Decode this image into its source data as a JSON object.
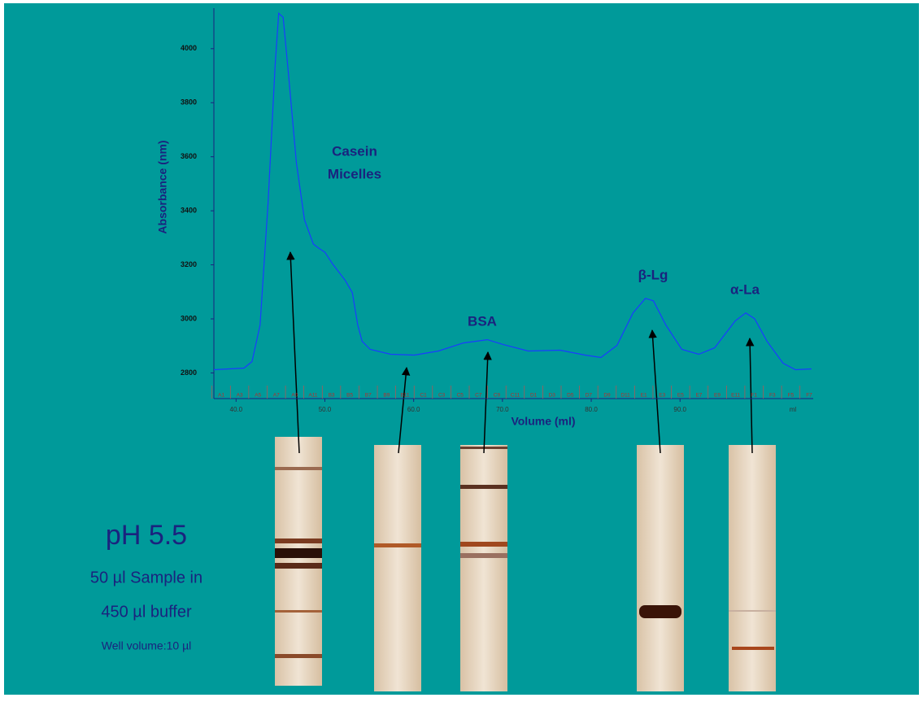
{
  "chart_data": {
    "type": "line",
    "y_label": "Absorbance (nm)",
    "x_label": "Volume (ml)",
    "x_unit": "ml",
    "xlim": [
      37.5,
      105
    ],
    "xticks": [
      {
        "value": 40,
        "label": "40.0"
      },
      {
        "value": 50,
        "label": "50.0"
      },
      {
        "value": 60,
        "label": "60.0"
      },
      {
        "value": 70,
        "label": "70.0"
      },
      {
        "value": 80,
        "label": "80.0"
      },
      {
        "value": 90,
        "label": "90.0"
      }
    ],
    "ylim": [
      2705,
      4150
    ],
    "yticks": [
      2800,
      3000,
      3200,
      3400,
      3600,
      3800,
      4000
    ],
    "fractions": [
      "A1",
      "A3",
      "A5",
      "A7",
      "A9",
      "A11",
      "B3",
      "B5",
      "B7",
      "B9",
      "B11",
      "C1",
      "C3",
      "C5",
      "C7",
      "C9",
      "C11",
      "D1",
      "D3",
      "D5",
      "D7",
      "D9",
      "D11",
      "E1",
      "E3",
      "E5",
      "E7",
      "E9",
      "E11",
      "F1",
      "F3",
      "F5",
      "F7"
    ],
    "series": [
      {
        "color": "#1a3cff",
        "x": [
          37.5,
          40.9,
          41.8,
          42.7,
          43.6,
          44.4,
          44.8,
          45.3,
          45.9,
          46.8,
          47.7,
          48.7,
          49.3,
          50.0,
          50.9,
          52.3,
          53.1,
          53.7,
          54.2,
          55.1,
          57.4,
          60.1,
          62.8,
          65.6,
          68.3,
          70.1,
          72.9,
          76.5,
          79.3,
          81.1,
          82.9,
          84.7,
          86.1,
          87.0,
          88.4,
          90.2,
          92.1,
          93.9,
          96.2,
          97.4,
          98.4,
          99.8,
          101.6,
          103.0,
          104.8
        ],
        "values": [
          2812,
          2818,
          2842,
          2977,
          3427,
          3937,
          4131,
          4116,
          3907,
          3577,
          3367,
          3277,
          3262,
          3247,
          3202,
          3142,
          3097,
          2977,
          2917,
          2887,
          2869,
          2866,
          2881,
          2911,
          2923,
          2905,
          2881,
          2884,
          2866,
          2857,
          2902,
          3022,
          3076,
          3067,
          2977,
          2887,
          2869,
          2893,
          2992,
          3022,
          3001,
          2917,
          2836,
          2812,
          2815
        ]
      }
    ],
    "annotations": [
      {
        "lines": [
          "Casein",
          "Micelles"
        ]
      },
      {
        "lines": [
          "BSA"
        ]
      },
      {
        "lines": [
          "β-Lg"
        ]
      },
      {
        "lines": [
          "α-La"
        ]
      }
    ]
  },
  "side_text": {
    "ph": "pH 5.5",
    "sample": "50 µl Sample in",
    "buffer": "450 µl buffer",
    "well": "Well volume:10 µl"
  }
}
